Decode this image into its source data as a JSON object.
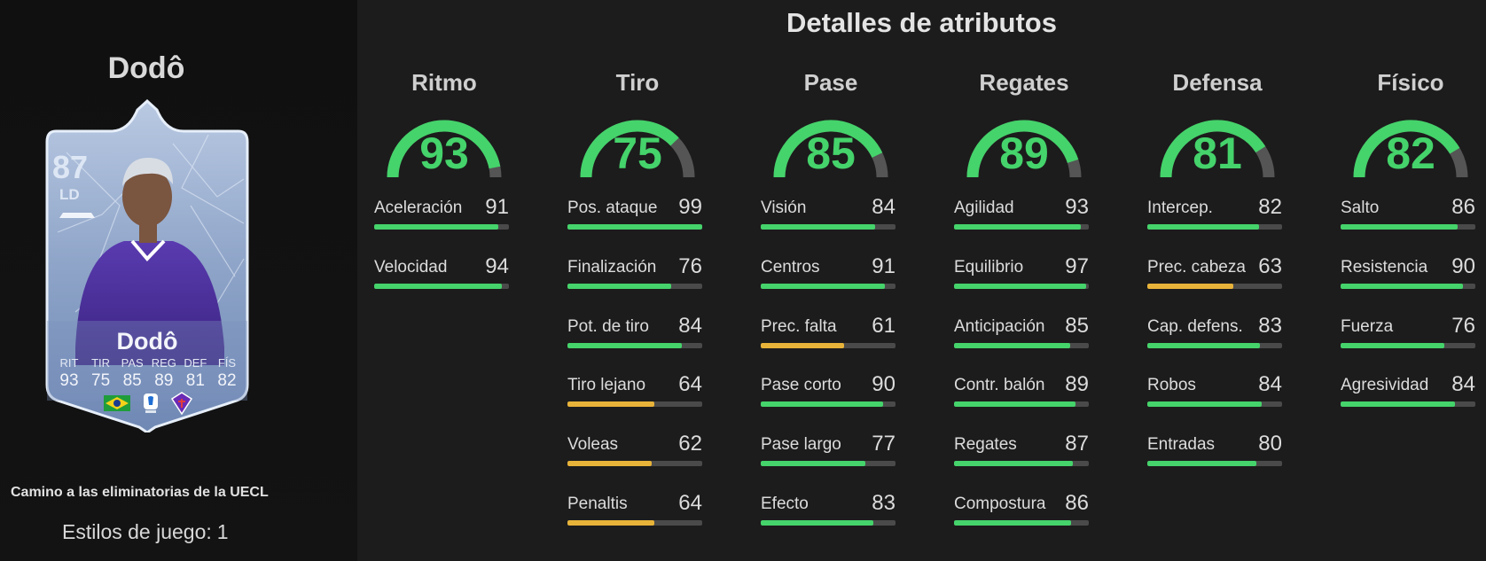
{
  "colors": {
    "high": "#45d36b",
    "mid": "#e8b339",
    "track": "#555555"
  },
  "player": {
    "name": "Dodô",
    "rating": "87",
    "position": "LD",
    "card_name": "Dodô",
    "card_stats": [
      {
        "label": "RIT",
        "value": "93"
      },
      {
        "label": "TIR",
        "value": "75"
      },
      {
        "label": "PAS",
        "value": "85"
      },
      {
        "label": "REG",
        "value": "89"
      },
      {
        "label": "DEF",
        "value": "81"
      },
      {
        "label": "FÍS",
        "value": "82"
      }
    ]
  },
  "promo": "Camino a las eliminatorias de la UECL",
  "playstyles": {
    "label": "Estilos de juego:",
    "value": "1"
  },
  "details_title": "Detalles de atributos",
  "categories": [
    {
      "name": "Ritmo",
      "value": 93,
      "attrs": [
        {
          "name": "Aceleración",
          "value": 91
        },
        {
          "name": "Velocidad",
          "value": 94
        }
      ]
    },
    {
      "name": "Tiro",
      "value": 75,
      "attrs": [
        {
          "name": "Pos. ataque",
          "value": 99
        },
        {
          "name": "Finalización",
          "value": 76
        },
        {
          "name": "Pot. de tiro",
          "value": 84
        },
        {
          "name": "Tiro lejano",
          "value": 64
        },
        {
          "name": "Voleas",
          "value": 62
        },
        {
          "name": "Penaltis",
          "value": 64
        }
      ]
    },
    {
      "name": "Pase",
      "value": 85,
      "attrs": [
        {
          "name": "Visión",
          "value": 84
        },
        {
          "name": "Centros",
          "value": 91
        },
        {
          "name": "Prec. falta",
          "value": 61
        },
        {
          "name": "Pase corto",
          "value": 90
        },
        {
          "name": "Pase largo",
          "value": 77
        },
        {
          "name": "Efecto",
          "value": 83
        }
      ]
    },
    {
      "name": "Regates",
      "value": 89,
      "attrs": [
        {
          "name": "Agilidad",
          "value": 93
        },
        {
          "name": "Equilibrio",
          "value": 97
        },
        {
          "name": "Anticipación",
          "value": 85
        },
        {
          "name": "Contr. balón",
          "value": 89
        },
        {
          "name": "Regates",
          "value": 87
        },
        {
          "name": "Compostura",
          "value": 86
        }
      ]
    },
    {
      "name": "Defensa",
      "value": 81,
      "attrs": [
        {
          "name": "Intercep.",
          "value": 82
        },
        {
          "name": "Prec. cabeza",
          "value": 63
        },
        {
          "name": "Cap. defens.",
          "value": 83
        },
        {
          "name": "Robos",
          "value": 84
        },
        {
          "name": "Entradas",
          "value": 80
        }
      ]
    },
    {
      "name": "Físico",
      "value": 82,
      "attrs": [
        {
          "name": "Salto",
          "value": 86
        },
        {
          "name": "Resistencia",
          "value": 90
        },
        {
          "name": "Fuerza",
          "value": 76
        },
        {
          "name": "Agresividad",
          "value": 84
        }
      ]
    }
  ]
}
